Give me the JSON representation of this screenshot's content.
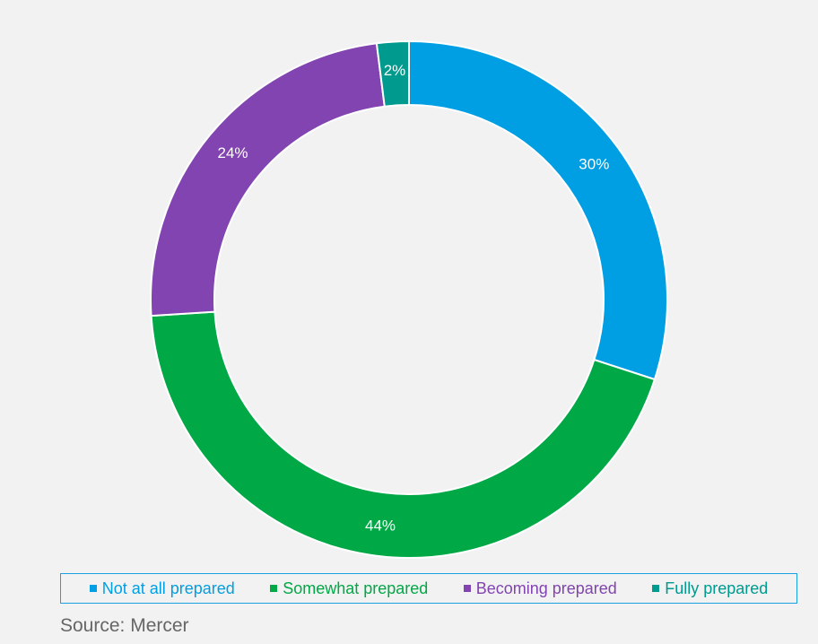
{
  "chart_data": {
    "type": "pie",
    "style": "donut",
    "categories": [
      "Not at all prepared",
      "Somewhat prepared",
      "Becoming prepared",
      "Fully prepared"
    ],
    "values": [
      30,
      44,
      24,
      2
    ],
    "labels": [
      "30%",
      "44%",
      "24%",
      "2%"
    ],
    "colors": [
      "#009fe3",
      "#00a846",
      "#8244b0",
      "#009a8e"
    ],
    "start_position": "top",
    "direction": "clockwise",
    "legend": "bottom"
  },
  "source": "Source: Mercer"
}
